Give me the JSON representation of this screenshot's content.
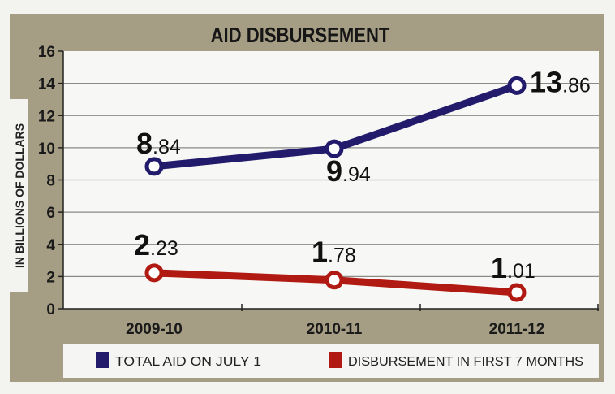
{
  "chart_data": {
    "type": "line",
    "title": "AID DISBURSEMENT",
    "xlabel": "",
    "ylabel": "IN BILLIONS OF DOLLARS",
    "categories": [
      "2009-10",
      "2010-11",
      "2011-12"
    ],
    "ylim": [
      0,
      16
    ],
    "yticks": [
      "0",
      "2",
      "4",
      "6",
      "8",
      "10",
      "12",
      "14",
      "16"
    ],
    "grid": true,
    "legend_position": "bottom",
    "series": [
      {
        "name": "TOTAL AID ON JULY 1",
        "values": [
          8.84,
          9.94,
          13.86
        ],
        "labels": [
          "8.84",
          "9.94",
          "13.86"
        ],
        "color": "#221a6b"
      },
      {
        "name": "DISBURSEMENT IN FIRST 7 MONTHS",
        "values": [
          2.23,
          1.78,
          1.01
        ],
        "labels": [
          "2.23",
          "1.78",
          "1.01"
        ],
        "color": "#b01a12"
      }
    ],
    "colors": {
      "frame": "#a59d84",
      "plot_bg": "#f7f7f5",
      "grid": "#8a8a86"
    }
  }
}
